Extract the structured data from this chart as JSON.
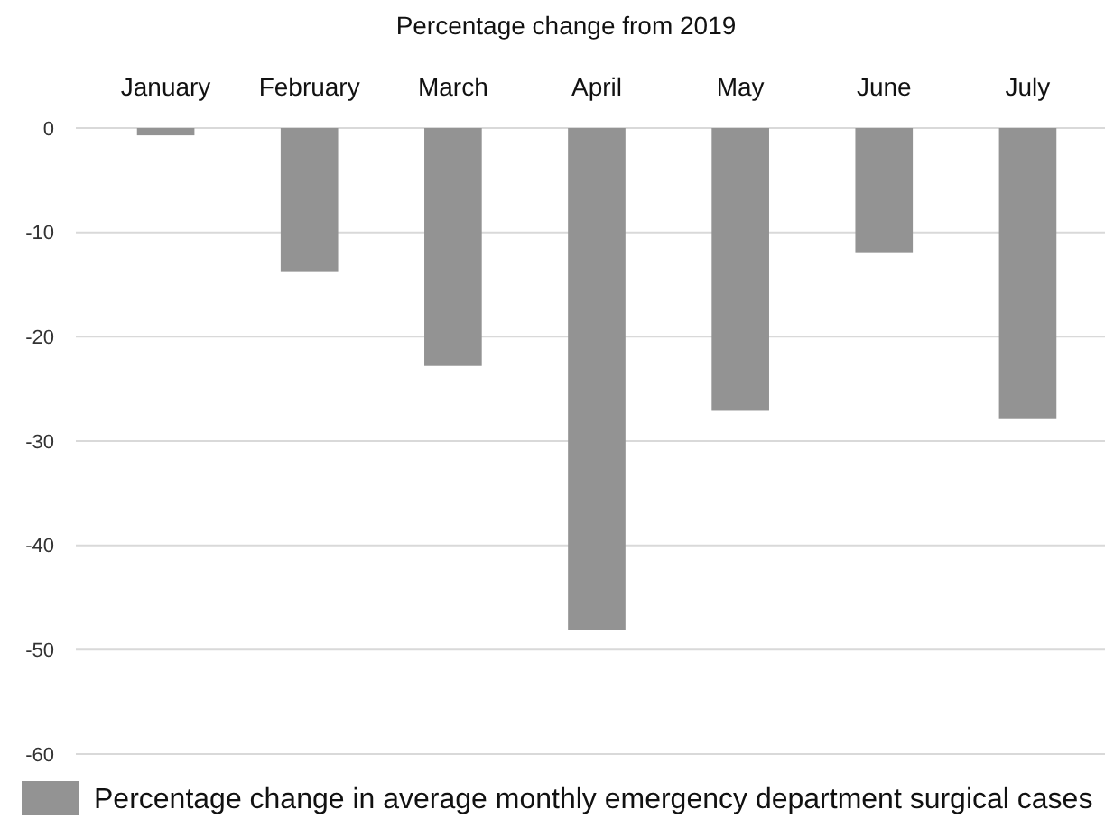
{
  "chart_data": {
    "type": "bar",
    "title": "Percentage change from 2019",
    "categories": [
      "January",
      "February",
      "March",
      "April",
      "May",
      "June",
      "July"
    ],
    "series": [
      {
        "name": "Percentage change in average monthly emergency department surgical cases",
        "color": "#939393",
        "values": [
          -0.7,
          -13.8,
          -22.8,
          -48.1,
          -27.1,
          -11.9,
          -27.9
        ]
      }
    ],
    "ylim": [
      -60,
      0
    ],
    "yticks": [
      -60,
      -50,
      -40,
      -30,
      -20,
      -10,
      0
    ],
    "grid": "y",
    "legend": "bottom left"
  }
}
